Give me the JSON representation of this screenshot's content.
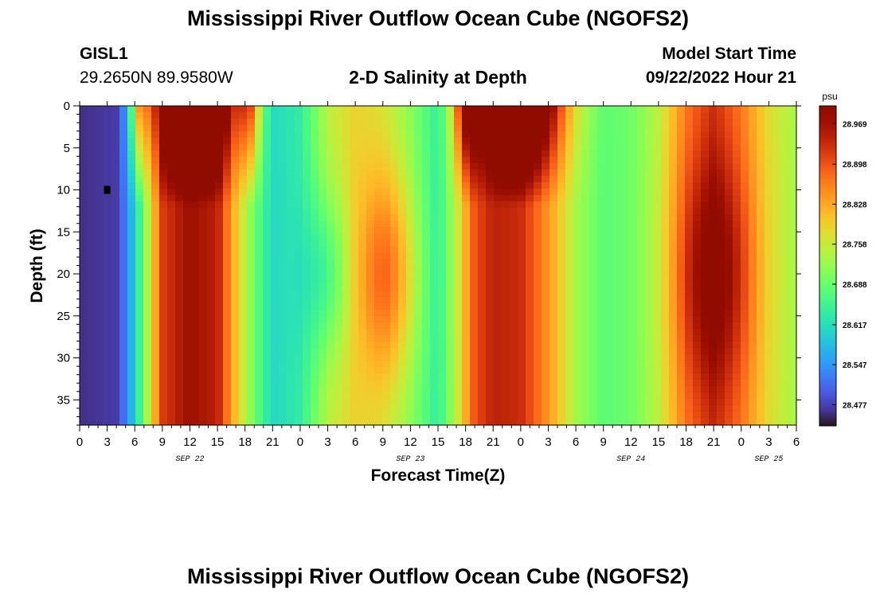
{
  "header": {
    "title": "Mississippi River Outflow Ocean Cube (NGOFS2)",
    "station_id": "GISL1",
    "station_coords": "29.2650N  89.9580W",
    "plot_title": "2-D Salinity at Depth",
    "model_start_label": "Model Start Time",
    "model_start_value": "09/22/2022 Hour 21",
    "repeat_title": "Mississippi River Outflow Ocean Cube (NGOFS2)"
  },
  "chart_data": {
    "type": "heatmap",
    "variable": "Salinity",
    "xlabel": "Forecast Time(Z)",
    "ylabel": "Depth (ft)",
    "colorbar_unit": "psu",
    "x_range_hours": [
      0,
      78
    ],
    "x_tick_step_hours": 3,
    "x_tick_labels": [
      "0",
      "3",
      "6",
      "9",
      "12",
      "15",
      "18",
      "21",
      "0",
      "3",
      "6",
      "9",
      "12",
      "15",
      "18",
      "21",
      "0",
      "3",
      "6",
      "9",
      "12",
      "15",
      "18",
      "21",
      "0",
      "3",
      "6"
    ],
    "date_labels": [
      {
        "label": "SEP 22",
        "hour": 12
      },
      {
        "label": "SEP 23",
        "hour": 36
      },
      {
        "label": "SEP 24",
        "hour": 60
      },
      {
        "label": "SEP 25",
        "hour": 75
      }
    ],
    "y_ticks": [
      0,
      5,
      10,
      15,
      20,
      25,
      30,
      35
    ],
    "y_range": [
      0,
      38
    ],
    "y_inverted": true,
    "colorbar_ticks": [
      28.969,
      28.898,
      28.828,
      28.758,
      28.688,
      28.617,
      28.547,
      28.477
    ],
    "colorbar_range": [
      28.44,
      29.0
    ],
    "colormap": "turbo",
    "grid": false,
    "marker": {
      "hour": 3,
      "depth": 10
    }
  }
}
